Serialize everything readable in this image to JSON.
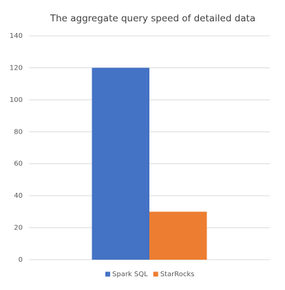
{
  "chart_data": {
    "type": "bar",
    "title": "The aggregate query speed of detailed data",
    "categories": [
      null
    ],
    "series": [
      {
        "name": "Spark SQL",
        "color": "#4472c4",
        "values": [
          120
        ]
      },
      {
        "name": "StarRocks",
        "color": "#ed7d31",
        "values": [
          30
        ]
      }
    ],
    "ylim": [
      0,
      140
    ],
    "yticks": [
      0,
      20,
      40,
      60,
      80,
      100,
      120,
      140
    ],
    "grid": true,
    "legend": "bottom"
  }
}
